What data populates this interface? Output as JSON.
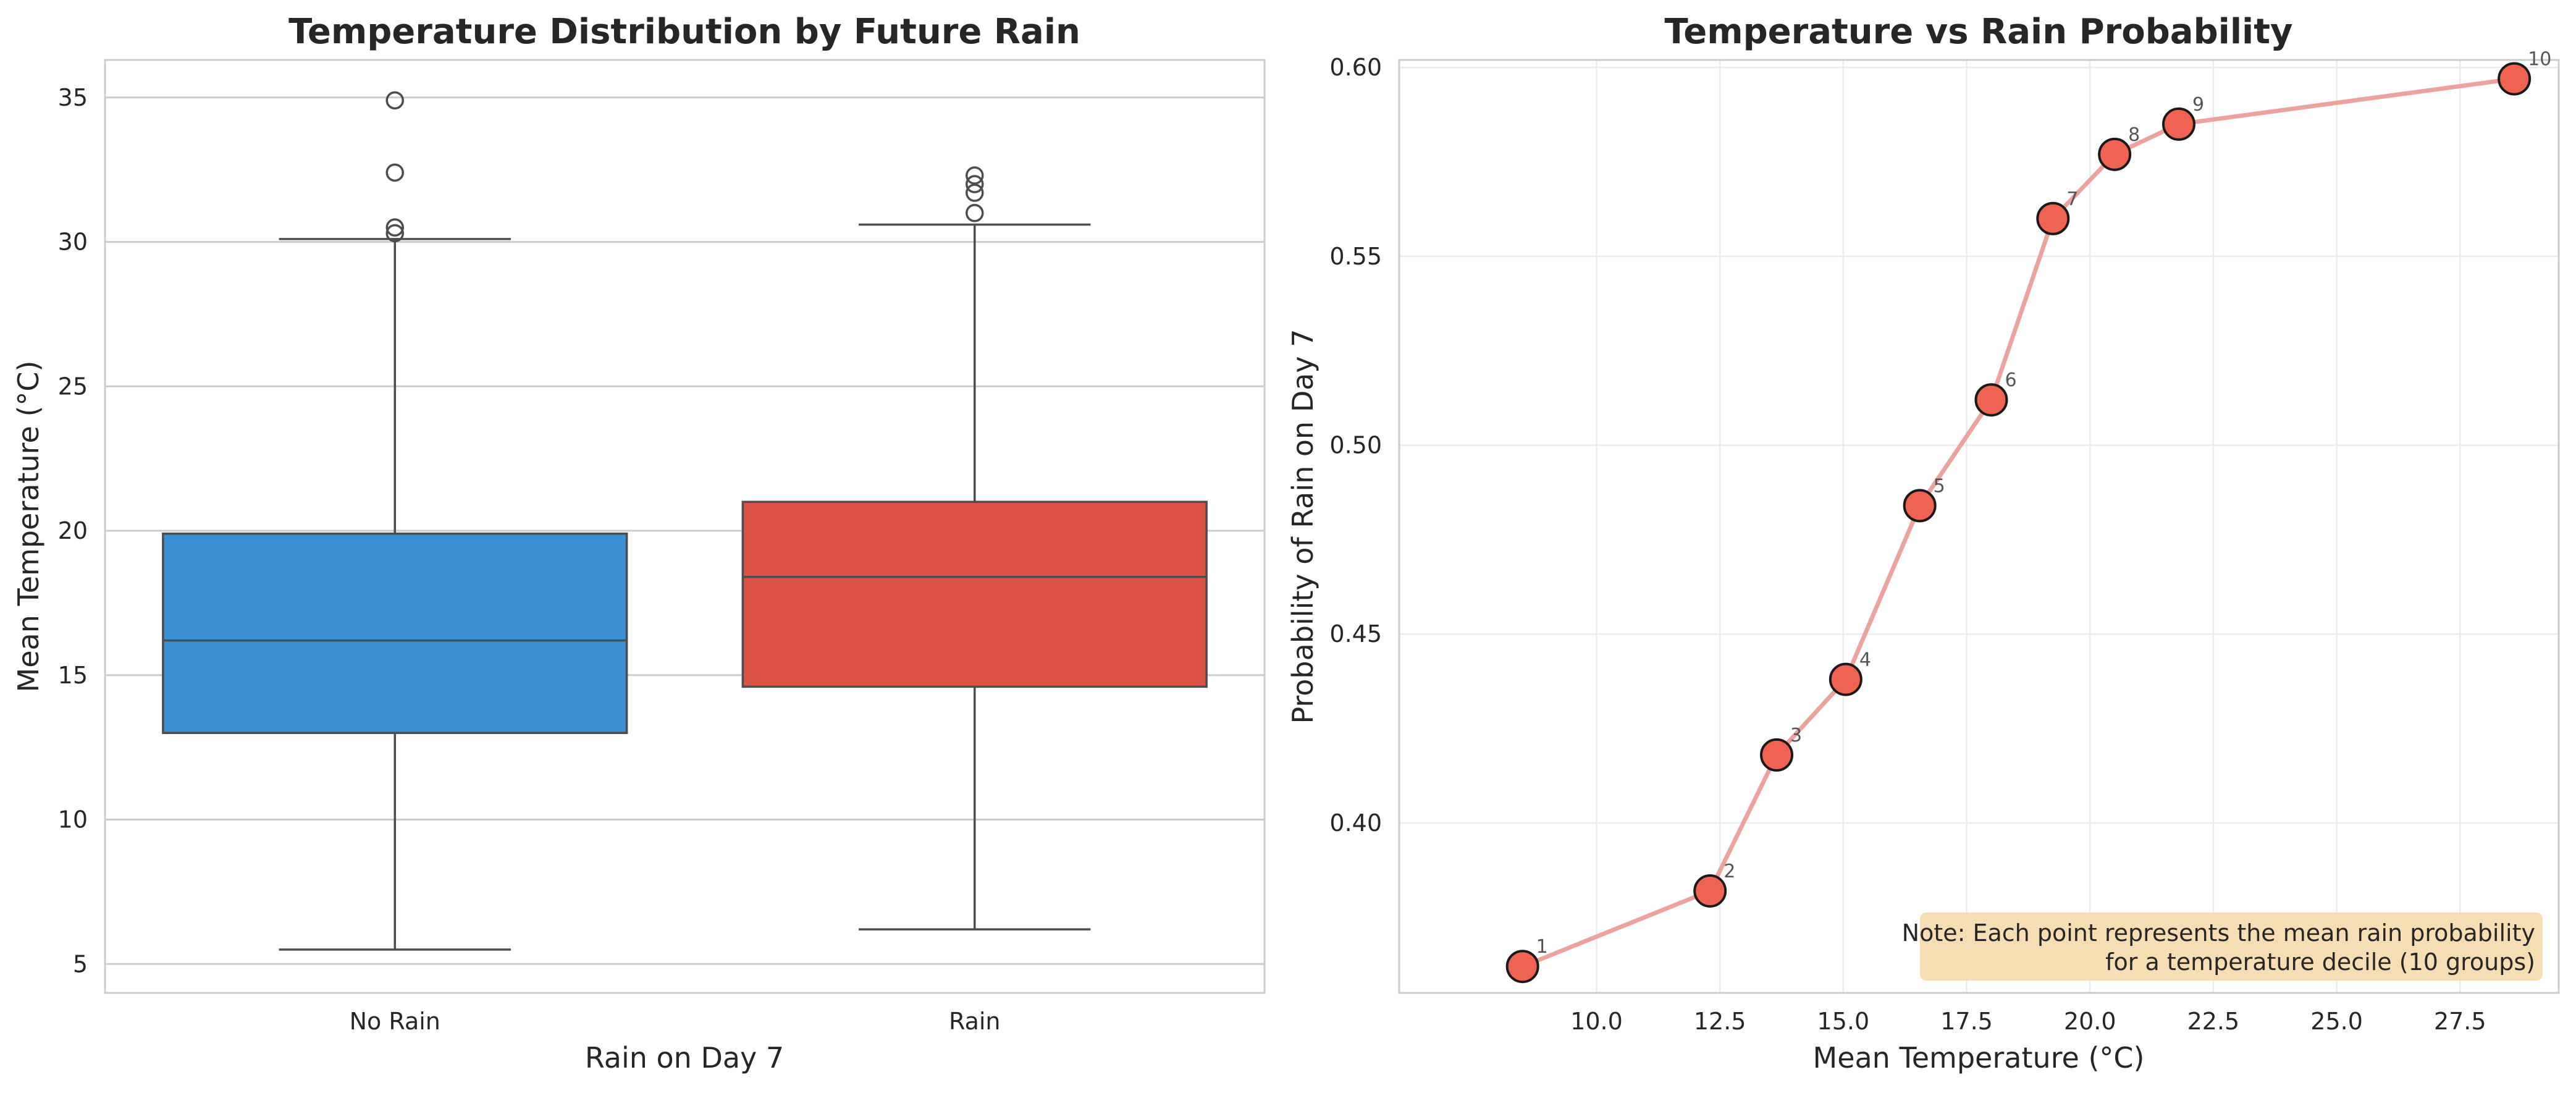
{
  "chart_data": [
    {
      "type": "box",
      "title": "Temperature Distribution by Future Rain",
      "xlabel": "Rain on Day 7",
      "ylabel": "Mean Temperature (°C)",
      "ylim": [
        4.0,
        36.3
      ],
      "yticks": [
        5,
        10,
        15,
        20,
        25,
        30,
        35
      ],
      "grid": "horizontal",
      "categories": [
        "No Rain",
        "Rain"
      ],
      "boxes": [
        {
          "name": "No Rain",
          "color": "#3b8fd2",
          "whisker_low": 5.5,
          "q1": 13.0,
          "median": 16.2,
          "q3": 19.9,
          "whisker_high": 30.1,
          "outliers": [
            30.3,
            30.5,
            32.4,
            34.9
          ]
        },
        {
          "name": "Rain",
          "color": "#dc5244",
          "whisker_low": 6.2,
          "q1": 14.6,
          "median": 18.4,
          "q3": 21.0,
          "whisker_high": 30.6,
          "outliers": [
            31.0,
            31.7,
            32.0,
            32.3
          ]
        }
      ]
    },
    {
      "type": "line",
      "title": "Temperature vs Rain Probability",
      "xlabel": "Mean Temperature (°C)",
      "ylabel": "Probability of Rain on Day 7",
      "xlim": [
        6.0,
        29.5
      ],
      "ylim": [
        0.355,
        0.602
      ],
      "xticks": [
        "10.0",
        "12.5",
        "15.0",
        "17.5",
        "20.0",
        "22.5",
        "25.0",
        "27.5"
      ],
      "yticks": [
        "0.40",
        "0.45",
        "0.50",
        "0.55",
        "0.60"
      ],
      "grid": "both",
      "line_color": "#eca39d",
      "marker_color": "#f06352",
      "points": [
        {
          "label": "1",
          "x": 8.5,
          "y": 0.362
        },
        {
          "label": "2",
          "x": 12.3,
          "y": 0.382
        },
        {
          "label": "3",
          "x": 13.65,
          "y": 0.418
        },
        {
          "label": "4",
          "x": 15.05,
          "y": 0.438
        },
        {
          "label": "5",
          "x": 16.55,
          "y": 0.484
        },
        {
          "label": "6",
          "x": 18.0,
          "y": 0.512
        },
        {
          "label": "7",
          "x": 19.25,
          "y": 0.56
        },
        {
          "label": "8",
          "x": 20.5,
          "y": 0.577
        },
        {
          "label": "9",
          "x": 21.8,
          "y": 0.585
        },
        {
          "label": "10",
          "x": 28.6,
          "y": 0.597
        }
      ],
      "note": {
        "line1": "Note: Each point represents the mean rain probability",
        "line2": "for a temperature decile (10 groups)",
        "color": "#f5deb3",
        "placement": "bottom-right"
      }
    }
  ]
}
